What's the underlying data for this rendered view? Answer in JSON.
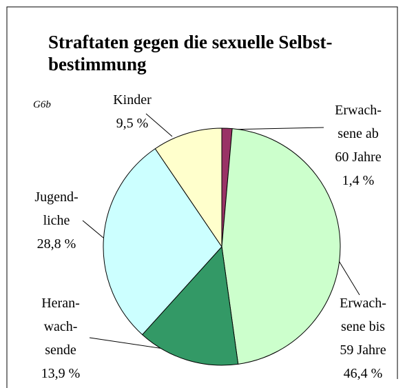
{
  "chart_data": {
    "type": "pie",
    "title": "Straftaten gegen die sexuelle Selbst-\nbestimmung",
    "annotation": "G6b",
    "categories": [
      "Erwach-\nsene ab\n60 Jahre",
      "Erwach-\nsene bis\n59 Jahre",
      "Heran-\nwach-\nsende",
      "Jugend-\nliche",
      "Kinder"
    ],
    "values": [
      1.4,
      46.4,
      13.9,
      28.8,
      9.5
    ],
    "value_labels": [
      "1,4 %",
      "46,4 %",
      "13,9 %",
      "28,8 %",
      "9,5 %"
    ],
    "colors": [
      "#993366",
      "#ccffcc",
      "#339966",
      "#ccffff",
      "#ffffcc"
    ]
  }
}
